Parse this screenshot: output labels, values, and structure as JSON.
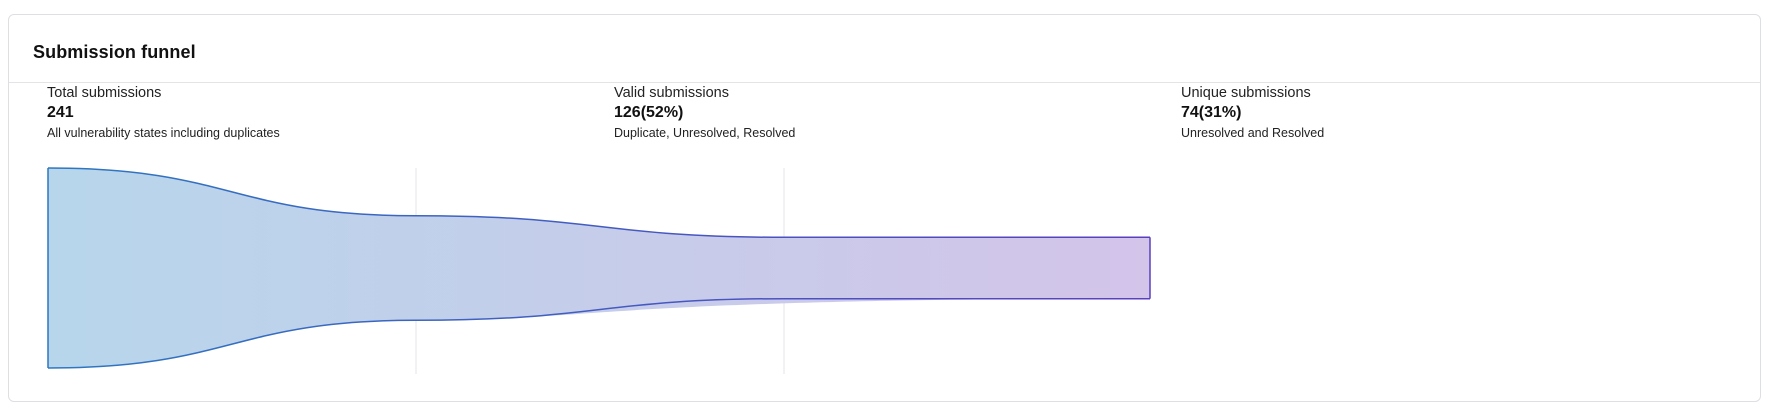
{
  "card": {
    "title": "Submission funnel"
  },
  "chart_data": {
    "type": "funnel",
    "stages": [
      {
        "label": "Total submissions",
        "value_text": "241",
        "value": 241,
        "percent": 100,
        "description": "All vulnerability states including duplicates"
      },
      {
        "label": "Valid submissions",
        "value_text": "126(52%)",
        "value": 126,
        "percent": 52,
        "description": "Duplicate, Unresolved, Resolved"
      },
      {
        "label": "Unique submissions",
        "value_text": "74(31%)",
        "value": 74,
        "percent": 31,
        "description": "Unresolved and Resolved"
      }
    ],
    "gradient": [
      "#b7d6eb",
      "#d3c4ea"
    ],
    "stroke_colors": [
      "#2e77c0",
      "#5a3fbf"
    ]
  }
}
